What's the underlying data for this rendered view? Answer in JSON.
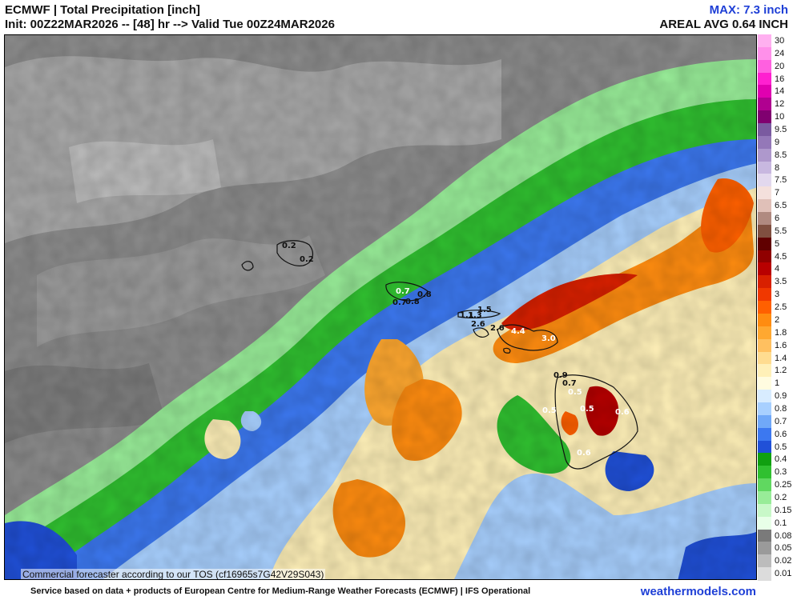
{
  "header": {
    "title": "ECMWF | Total Precipitation [inch]",
    "subtitle": "Init: 00Z22MAR2026 -- [48] hr --> Valid Tue 00Z24MAR2026",
    "max_label": "MAX: 7.3 inch",
    "areal_label": "AREAL AVG 0.64 INCH"
  },
  "map": {
    "tos_notice": "Commercial forecaster according to our TOS (cf16965s7G42V29S043)",
    "point_values": [
      {
        "text": "0.2",
        "color": "#111111"
      },
      {
        "text": "0.2",
        "color": "#111111"
      },
      {
        "text": "0.7",
        "color": "#ffffff"
      },
      {
        "text": "0.8",
        "color": "#111111"
      },
      {
        "text": "0.7",
        "color": "#111111"
      },
      {
        "text": "0.8",
        "color": "#111111"
      },
      {
        "text": "1.1",
        "color": "#111111"
      },
      {
        "text": "1.3",
        "color": "#111111"
      },
      {
        "text": "1.5",
        "color": "#111111"
      },
      {
        "text": "2.6",
        "color": "#111111"
      },
      {
        "text": "2.6",
        "color": "#111111"
      },
      {
        "text": "4.4",
        "color": "#ffffff"
      },
      {
        "text": "3.0",
        "color": "#ffffff"
      },
      {
        "text": "0.9",
        "color": "#111111"
      },
      {
        "text": "0.7",
        "color": "#111111"
      },
      {
        "text": "0.5",
        "color": "#ffffff"
      },
      {
        "text": "0.5",
        "color": "#ffffff"
      },
      {
        "text": "0.5",
        "color": "#ffffff"
      },
      {
        "text": "0.6",
        "color": "#ffffff"
      },
      {
        "text": "0.6",
        "color": "#ffffff"
      }
    ]
  },
  "colorbar": {
    "levels": [
      {
        "label": "30",
        "color": "#ffb0f0"
      },
      {
        "label": "24",
        "color": "#ff90ea"
      },
      {
        "label": "20",
        "color": "#ff60e0"
      },
      {
        "label": "16",
        "color": "#ff20d0"
      },
      {
        "label": "14",
        "color": "#e000b0"
      },
      {
        "label": "12",
        "color": "#b00090"
      },
      {
        "label": "10",
        "color": "#800070"
      },
      {
        "label": "9.5",
        "color": "#7a5aa0"
      },
      {
        "label": "9",
        "color": "#9478b8"
      },
      {
        "label": "8.5",
        "color": "#ae98cc"
      },
      {
        "label": "8",
        "color": "#c8b8e0"
      },
      {
        "label": "7.5",
        "color": "#e2d8ee"
      },
      {
        "label": "7",
        "color": "#f4e0dc"
      },
      {
        "label": "6.5",
        "color": "#e0c0b8"
      },
      {
        "label": "6",
        "color": "#b08a80"
      },
      {
        "label": "5.5",
        "color": "#805040"
      },
      {
        "label": "5",
        "color": "#600000"
      },
      {
        "label": "4.5",
        "color": "#900000"
      },
      {
        "label": "4",
        "color": "#b80000"
      },
      {
        "label": "3.5",
        "color": "#d82000"
      },
      {
        "label": "3",
        "color": "#f03800"
      },
      {
        "label": "2.5",
        "color": "#ff6000"
      },
      {
        "label": "2",
        "color": "#ff8c10"
      },
      {
        "label": "1.8",
        "color": "#ffa830"
      },
      {
        "label": "1.6",
        "color": "#ffc060"
      },
      {
        "label": "1.4",
        "color": "#ffdc90"
      },
      {
        "label": "1.2",
        "color": "#fff0b8"
      },
      {
        "label": "1",
        "color": "#fffce0"
      },
      {
        "label": "0.9",
        "color": "#d8ecff"
      },
      {
        "label": "0.8",
        "color": "#a8d0ff"
      },
      {
        "label": "0.7",
        "color": "#70a8f8"
      },
      {
        "label": "0.6",
        "color": "#3c78f0"
      },
      {
        "label": "0.5",
        "color": "#2050d8"
      },
      {
        "label": "0.4",
        "color": "#10a010"
      },
      {
        "label": "0.3",
        "color": "#30c030"
      },
      {
        "label": "0.25",
        "color": "#60d860"
      },
      {
        "label": "0.2",
        "color": "#98ec98"
      },
      {
        "label": "0.15",
        "color": "#c8f8c8"
      },
      {
        "label": "0.1",
        "color": "#e8ffe8"
      },
      {
        "label": "0.08",
        "color": "#7a7a7a"
      },
      {
        "label": "0.05",
        "color": "#9a9a9a"
      },
      {
        "label": "0.02",
        "color": "#bcbcbc"
      },
      {
        "label": "0.01",
        "color": "#dcdcdc"
      }
    ]
  },
  "footer": {
    "credit": "Service based on data + products of European Centre for Medium-Range Weather Forecasts (ECMWF) | IFS Operational",
    "brand": "weathermodels.com"
  }
}
